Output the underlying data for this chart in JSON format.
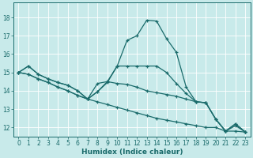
{
  "xlabel": "Humidex (Indice chaleur)",
  "bg_color": "#c8eaea",
  "line_color": "#1a6b6b",
  "grid_color": "#ffffff",
  "xlim": [
    -0.5,
    23.5
  ],
  "ylim": [
    11.5,
    18.8
  ],
  "yticks": [
    12,
    13,
    14,
    15,
    16,
    17,
    18
  ],
  "xticks": [
    0,
    1,
    2,
    3,
    4,
    5,
    6,
    7,
    8,
    9,
    10,
    11,
    12,
    13,
    14,
    15,
    16,
    17,
    18,
    19,
    20,
    21,
    22,
    23
  ],
  "series1": [
    [
      0,
      15.0
    ],
    [
      1,
      15.35
    ],
    [
      2,
      14.9
    ],
    [
      3,
      14.65
    ],
    [
      4,
      14.45
    ],
    [
      5,
      14.3
    ],
    [
      6,
      14.0
    ],
    [
      7,
      13.55
    ],
    [
      8,
      13.95
    ],
    [
      9,
      14.45
    ],
    [
      10,
      15.35
    ],
    [
      11,
      16.75
    ],
    [
      12,
      17.0
    ],
    [
      13,
      17.85
    ],
    [
      14,
      17.8
    ],
    [
      15,
      16.85
    ],
    [
      16,
      16.1
    ],
    [
      17,
      14.2
    ],
    [
      18,
      13.4
    ],
    [
      19,
      13.35
    ],
    [
      20,
      12.45
    ],
    [
      21,
      11.8
    ],
    [
      22,
      12.2
    ],
    [
      23,
      11.75
    ]
  ],
  "series2": [
    [
      0,
      15.0
    ],
    [
      1,
      15.35
    ],
    [
      2,
      14.9
    ],
    [
      3,
      14.65
    ],
    [
      4,
      14.45
    ],
    [
      5,
      14.3
    ],
    [
      6,
      14.0
    ],
    [
      7,
      13.55
    ],
    [
      8,
      13.95
    ],
    [
      9,
      14.5
    ],
    [
      10,
      15.35
    ],
    [
      11,
      15.35
    ],
    [
      12,
      15.35
    ],
    [
      13,
      15.35
    ],
    [
      14,
      15.35
    ],
    [
      15,
      15.0
    ],
    [
      16,
      14.4
    ],
    [
      17,
      13.85
    ],
    [
      18,
      13.4
    ],
    [
      19,
      13.35
    ],
    [
      20,
      12.45
    ],
    [
      21,
      11.8
    ],
    [
      22,
      12.2
    ],
    [
      23,
      11.75
    ]
  ],
  "series3": [
    [
      0,
      15.0
    ],
    [
      1,
      14.9
    ],
    [
      2,
      14.65
    ],
    [
      3,
      14.45
    ],
    [
      4,
      14.2
    ],
    [
      5,
      14.0
    ],
    [
      6,
      13.75
    ],
    [
      7,
      13.55
    ],
    [
      8,
      14.4
    ],
    [
      9,
      14.5
    ],
    [
      10,
      14.4
    ],
    [
      11,
      14.35
    ],
    [
      12,
      14.2
    ],
    [
      13,
      14.0
    ],
    [
      14,
      13.9
    ],
    [
      15,
      13.8
    ],
    [
      16,
      13.7
    ],
    [
      17,
      13.55
    ],
    [
      18,
      13.4
    ],
    [
      19,
      13.35
    ],
    [
      20,
      12.45
    ],
    [
      21,
      11.8
    ],
    [
      22,
      12.1
    ],
    [
      23,
      11.75
    ]
  ],
  "series4": [
    [
      0,
      15.0
    ],
    [
      1,
      14.9
    ],
    [
      2,
      14.65
    ],
    [
      3,
      14.45
    ],
    [
      4,
      14.2
    ],
    [
      5,
      14.0
    ],
    [
      6,
      13.75
    ],
    [
      7,
      13.55
    ],
    [
      8,
      13.4
    ],
    [
      9,
      13.25
    ],
    [
      10,
      13.1
    ],
    [
      11,
      12.95
    ],
    [
      12,
      12.8
    ],
    [
      13,
      12.65
    ],
    [
      14,
      12.5
    ],
    [
      15,
      12.4
    ],
    [
      16,
      12.3
    ],
    [
      17,
      12.2
    ],
    [
      18,
      12.1
    ],
    [
      19,
      12.0
    ],
    [
      20,
      12.0
    ],
    [
      21,
      11.8
    ],
    [
      22,
      11.8
    ],
    [
      23,
      11.75
    ]
  ]
}
